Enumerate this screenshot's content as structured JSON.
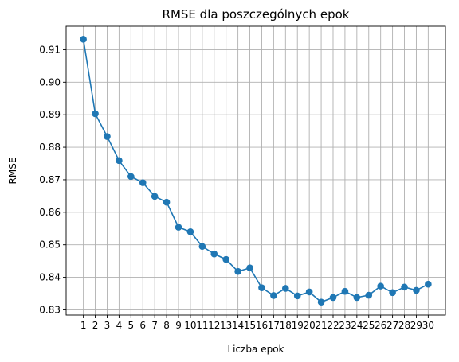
{
  "chart_data": {
    "type": "line",
    "title": "RMSE dla poszczególnych epok",
    "xlabel": "Liczba epok",
    "ylabel": "RMSE",
    "grid": true,
    "line_color": "#1f77b4",
    "x": [
      1,
      2,
      3,
      4,
      5,
      6,
      7,
      8,
      9,
      10,
      11,
      12,
      13,
      14,
      15,
      16,
      17,
      18,
      19,
      20,
      21,
      22,
      23,
      24,
      25,
      26,
      27,
      28,
      29,
      30
    ],
    "values": [
      0.9132,
      0.8903,
      0.8833,
      0.8759,
      0.871,
      0.8691,
      0.8649,
      0.8631,
      0.8554,
      0.854,
      0.8495,
      0.8472,
      0.8455,
      0.8418,
      0.8429,
      0.8368,
      0.8344,
      0.8366,
      0.8343,
      0.8355,
      0.8324,
      0.8338,
      0.8357,
      0.8338,
      0.8345,
      0.8373,
      0.8353,
      0.837,
      0.836,
      0.8379
    ],
    "xticks": [
      "1",
      "2",
      "3",
      "4",
      "5",
      "6",
      "7",
      "8",
      "9",
      "10",
      "11",
      "12",
      "13",
      "14",
      "15",
      "16",
      "17",
      "18",
      "19",
      "20",
      "21",
      "22",
      "23",
      "24",
      "25",
      "26",
      "27",
      "28",
      "29",
      "30"
    ],
    "yticks": [
      0.83,
      0.84,
      0.85,
      0.86,
      0.87,
      0.88,
      0.89,
      0.9,
      0.91
    ],
    "ytick_labels": [
      "0.83",
      "0.84",
      "0.85",
      "0.86",
      "0.87",
      "0.88",
      "0.89",
      "0.90",
      "0.91"
    ],
    "xlim": [
      -0.45,
      31.45
    ],
    "ylim": [
      0.8284,
      0.9172
    ]
  }
}
